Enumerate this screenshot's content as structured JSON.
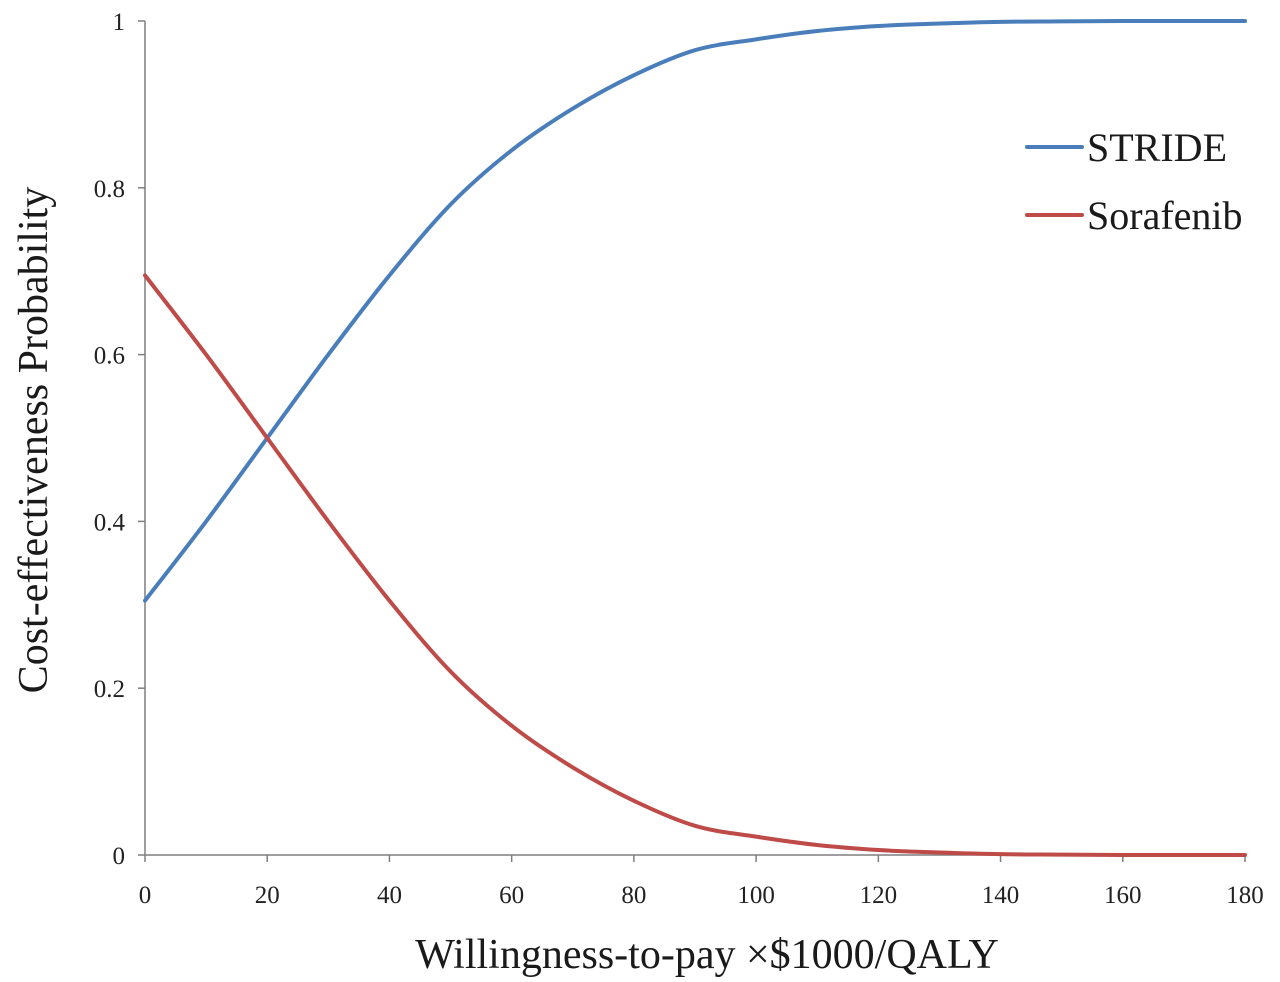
{
  "chart_data": {
    "type": "line",
    "title": "",
    "xlabel": "Willingness-to-pay ×$1000/QALY",
    "ylabel": "Cost-effectiveness Probability",
    "xlim": [
      0,
      180
    ],
    "ylim": [
      0,
      1
    ],
    "x_ticks": [
      0,
      20,
      40,
      60,
      80,
      100,
      120,
      140,
      160,
      180
    ],
    "x_tick_labels": [
      "0",
      "20",
      "40",
      "60",
      "80",
      "100",
      "120",
      "140",
      "160",
      "180"
    ],
    "y_ticks": [
      0,
      0.2,
      0.4,
      0.6,
      0.8,
      1
    ],
    "y_tick_labels": [
      "0",
      "0.2",
      "0.4",
      "0.6",
      "0.8",
      "1"
    ],
    "grid": false,
    "legend_position": "top-right",
    "series": [
      {
        "name": "STRIDE",
        "color": "#4a7ebb",
        "x": [
          0,
          10,
          20,
          30,
          40,
          50,
          60,
          70,
          80,
          90,
          100,
          110,
          120,
          130,
          140,
          150,
          160,
          170,
          180
        ],
        "y": [
          0.305,
          0.4,
          0.5,
          0.6,
          0.695,
          0.78,
          0.845,
          0.895,
          0.935,
          0.965,
          0.978,
          0.988,
          0.994,
          0.997,
          0.999,
          0.9995,
          1.0,
          1.0,
          1.0
        ]
      },
      {
        "name": "Sorafenib",
        "color": "#be4b48",
        "x": [
          0,
          10,
          20,
          30,
          40,
          50,
          60,
          70,
          80,
          90,
          100,
          110,
          120,
          130,
          140,
          150,
          160,
          170,
          180
        ],
        "y": [
          0.695,
          0.6,
          0.5,
          0.4,
          0.305,
          0.22,
          0.155,
          0.105,
          0.065,
          0.035,
          0.022,
          0.012,
          0.006,
          0.003,
          0.001,
          0.0005,
          0.0,
          0.0,
          0.0
        ]
      }
    ]
  }
}
